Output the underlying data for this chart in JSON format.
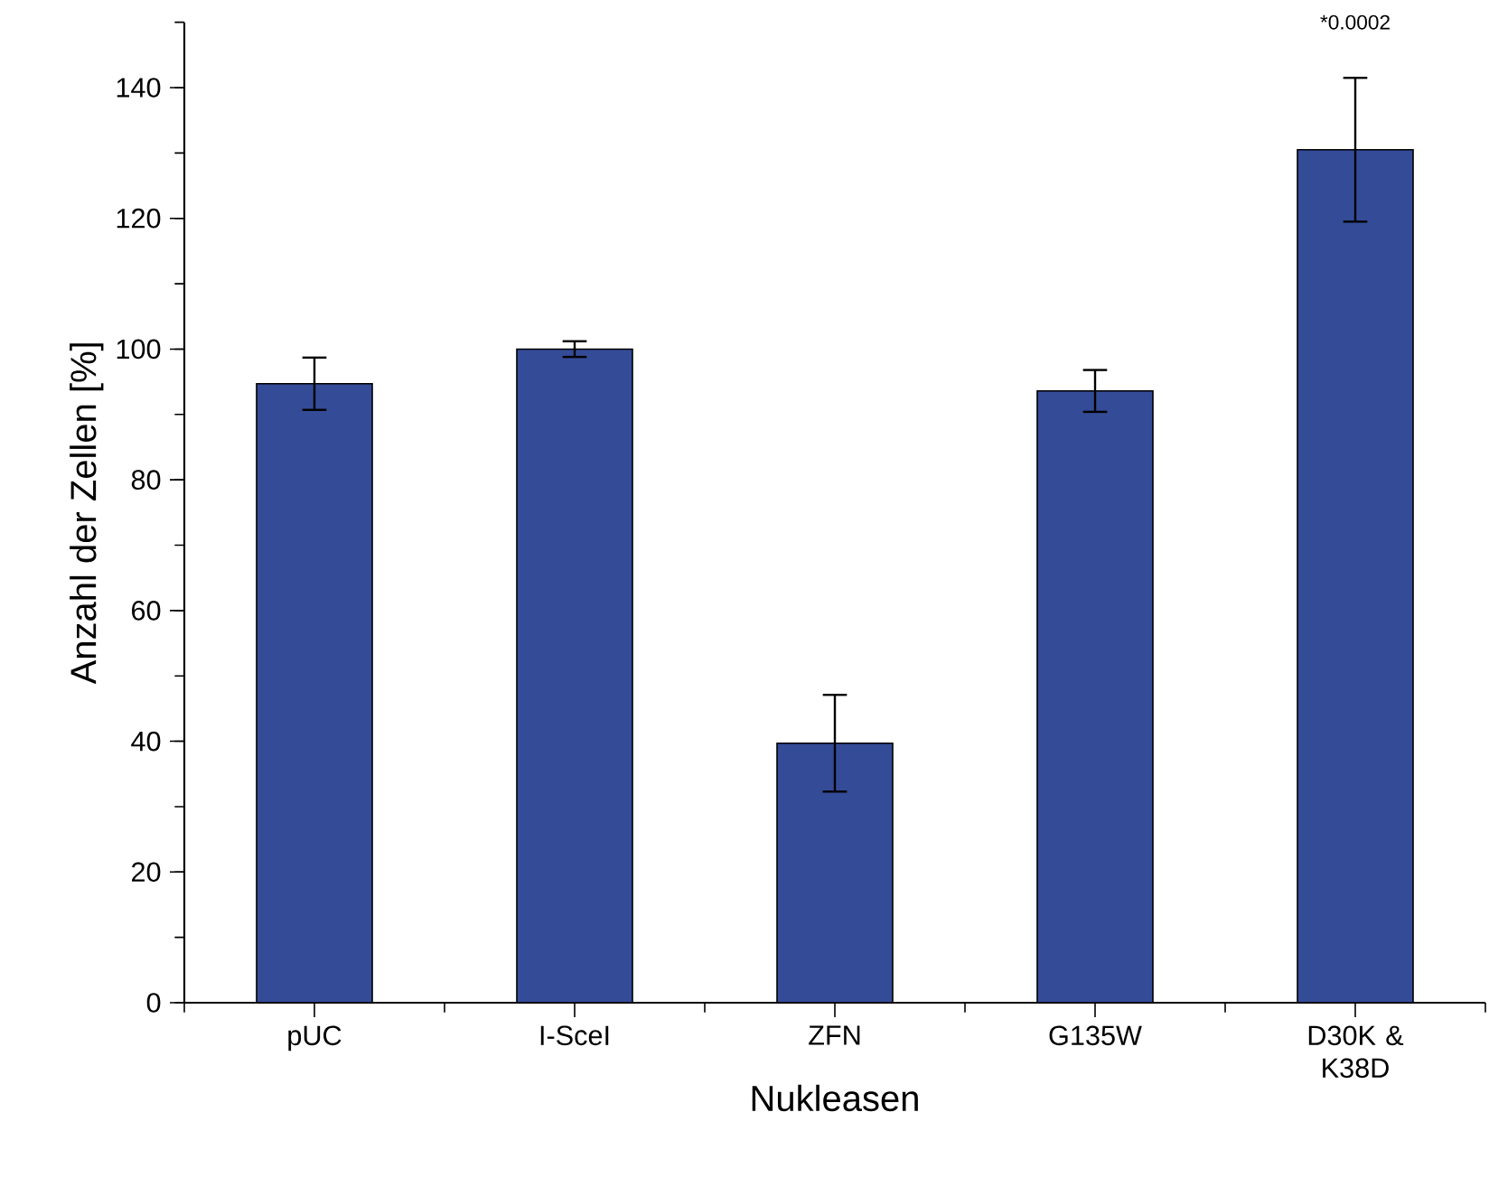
{
  "chart_data": {
    "type": "bar",
    "xlabel": "Nukleasen",
    "ylabel": "Anzahl der Zellen [%]",
    "categories": [
      "pUC",
      "I-SceI",
      "ZFN",
      "G135W",
      "D30K & K38D"
    ],
    "values": [
      94.7,
      100,
      39.7,
      93.6,
      130.5
    ],
    "errors": [
      4,
      1.2,
      7.4,
      3.2,
      11
    ],
    "color": "#344b97",
    "ylim": [
      0,
      150
    ],
    "yticks": [
      0,
      20,
      40,
      60,
      80,
      100,
      120,
      140
    ],
    "annotations": [
      "*0.0002"
    ]
  }
}
